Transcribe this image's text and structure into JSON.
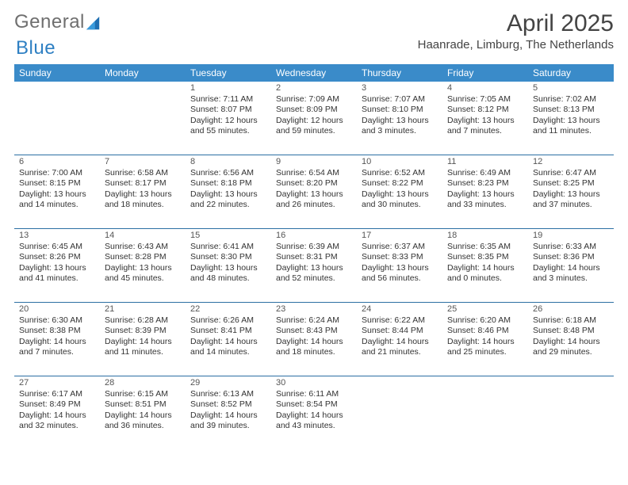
{
  "brand": {
    "word1": "General",
    "word2": "Blue"
  },
  "header": {
    "month_title": "April 2025",
    "location": "Haanrade, Limburg, The Netherlands"
  },
  "calendar": {
    "day_headers": [
      "Sunday",
      "Monday",
      "Tuesday",
      "Wednesday",
      "Thursday",
      "Friday",
      "Saturday"
    ],
    "header_bg": "#3a8bc9",
    "header_fg": "#ffffff",
    "row_border_color": "#2c6fa3",
    "text_color": "#333333",
    "cell_font_size_pt": 8,
    "weeks": [
      [
        null,
        null,
        {
          "n": "1",
          "sunrise": "Sunrise: 7:11 AM",
          "sunset": "Sunset: 8:07 PM",
          "day1": "Daylight: 12 hours",
          "day2": "and 55 minutes."
        },
        {
          "n": "2",
          "sunrise": "Sunrise: 7:09 AM",
          "sunset": "Sunset: 8:09 PM",
          "day1": "Daylight: 12 hours",
          "day2": "and 59 minutes."
        },
        {
          "n": "3",
          "sunrise": "Sunrise: 7:07 AM",
          "sunset": "Sunset: 8:10 PM",
          "day1": "Daylight: 13 hours",
          "day2": "and 3 minutes."
        },
        {
          "n": "4",
          "sunrise": "Sunrise: 7:05 AM",
          "sunset": "Sunset: 8:12 PM",
          "day1": "Daylight: 13 hours",
          "day2": "and 7 minutes."
        },
        {
          "n": "5",
          "sunrise": "Sunrise: 7:02 AM",
          "sunset": "Sunset: 8:13 PM",
          "day1": "Daylight: 13 hours",
          "day2": "and 11 minutes."
        }
      ],
      [
        {
          "n": "6",
          "sunrise": "Sunrise: 7:00 AM",
          "sunset": "Sunset: 8:15 PM",
          "day1": "Daylight: 13 hours",
          "day2": "and 14 minutes."
        },
        {
          "n": "7",
          "sunrise": "Sunrise: 6:58 AM",
          "sunset": "Sunset: 8:17 PM",
          "day1": "Daylight: 13 hours",
          "day2": "and 18 minutes."
        },
        {
          "n": "8",
          "sunrise": "Sunrise: 6:56 AM",
          "sunset": "Sunset: 8:18 PM",
          "day1": "Daylight: 13 hours",
          "day2": "and 22 minutes."
        },
        {
          "n": "9",
          "sunrise": "Sunrise: 6:54 AM",
          "sunset": "Sunset: 8:20 PM",
          "day1": "Daylight: 13 hours",
          "day2": "and 26 minutes."
        },
        {
          "n": "10",
          "sunrise": "Sunrise: 6:52 AM",
          "sunset": "Sunset: 8:22 PM",
          "day1": "Daylight: 13 hours",
          "day2": "and 30 minutes."
        },
        {
          "n": "11",
          "sunrise": "Sunrise: 6:49 AM",
          "sunset": "Sunset: 8:23 PM",
          "day1": "Daylight: 13 hours",
          "day2": "and 33 minutes."
        },
        {
          "n": "12",
          "sunrise": "Sunrise: 6:47 AM",
          "sunset": "Sunset: 8:25 PM",
          "day1": "Daylight: 13 hours",
          "day2": "and 37 minutes."
        }
      ],
      [
        {
          "n": "13",
          "sunrise": "Sunrise: 6:45 AM",
          "sunset": "Sunset: 8:26 PM",
          "day1": "Daylight: 13 hours",
          "day2": "and 41 minutes."
        },
        {
          "n": "14",
          "sunrise": "Sunrise: 6:43 AM",
          "sunset": "Sunset: 8:28 PM",
          "day1": "Daylight: 13 hours",
          "day2": "and 45 minutes."
        },
        {
          "n": "15",
          "sunrise": "Sunrise: 6:41 AM",
          "sunset": "Sunset: 8:30 PM",
          "day1": "Daylight: 13 hours",
          "day2": "and 48 minutes."
        },
        {
          "n": "16",
          "sunrise": "Sunrise: 6:39 AM",
          "sunset": "Sunset: 8:31 PM",
          "day1": "Daylight: 13 hours",
          "day2": "and 52 minutes."
        },
        {
          "n": "17",
          "sunrise": "Sunrise: 6:37 AM",
          "sunset": "Sunset: 8:33 PM",
          "day1": "Daylight: 13 hours",
          "day2": "and 56 minutes."
        },
        {
          "n": "18",
          "sunrise": "Sunrise: 6:35 AM",
          "sunset": "Sunset: 8:35 PM",
          "day1": "Daylight: 14 hours",
          "day2": "and 0 minutes."
        },
        {
          "n": "19",
          "sunrise": "Sunrise: 6:33 AM",
          "sunset": "Sunset: 8:36 PM",
          "day1": "Daylight: 14 hours",
          "day2": "and 3 minutes."
        }
      ],
      [
        {
          "n": "20",
          "sunrise": "Sunrise: 6:30 AM",
          "sunset": "Sunset: 8:38 PM",
          "day1": "Daylight: 14 hours",
          "day2": "and 7 minutes."
        },
        {
          "n": "21",
          "sunrise": "Sunrise: 6:28 AM",
          "sunset": "Sunset: 8:39 PM",
          "day1": "Daylight: 14 hours",
          "day2": "and 11 minutes."
        },
        {
          "n": "22",
          "sunrise": "Sunrise: 6:26 AM",
          "sunset": "Sunset: 8:41 PM",
          "day1": "Daylight: 14 hours",
          "day2": "and 14 minutes."
        },
        {
          "n": "23",
          "sunrise": "Sunrise: 6:24 AM",
          "sunset": "Sunset: 8:43 PM",
          "day1": "Daylight: 14 hours",
          "day2": "and 18 minutes."
        },
        {
          "n": "24",
          "sunrise": "Sunrise: 6:22 AM",
          "sunset": "Sunset: 8:44 PM",
          "day1": "Daylight: 14 hours",
          "day2": "and 21 minutes."
        },
        {
          "n": "25",
          "sunrise": "Sunrise: 6:20 AM",
          "sunset": "Sunset: 8:46 PM",
          "day1": "Daylight: 14 hours",
          "day2": "and 25 minutes."
        },
        {
          "n": "26",
          "sunrise": "Sunrise: 6:18 AM",
          "sunset": "Sunset: 8:48 PM",
          "day1": "Daylight: 14 hours",
          "day2": "and 29 minutes."
        }
      ],
      [
        {
          "n": "27",
          "sunrise": "Sunrise: 6:17 AM",
          "sunset": "Sunset: 8:49 PM",
          "day1": "Daylight: 14 hours",
          "day2": "and 32 minutes."
        },
        {
          "n": "28",
          "sunrise": "Sunrise: 6:15 AM",
          "sunset": "Sunset: 8:51 PM",
          "day1": "Daylight: 14 hours",
          "day2": "and 36 minutes."
        },
        {
          "n": "29",
          "sunrise": "Sunrise: 6:13 AM",
          "sunset": "Sunset: 8:52 PM",
          "day1": "Daylight: 14 hours",
          "day2": "and 39 minutes."
        },
        {
          "n": "30",
          "sunrise": "Sunrise: 6:11 AM",
          "sunset": "Sunset: 8:54 PM",
          "day1": "Daylight: 14 hours",
          "day2": "and 43 minutes."
        },
        null,
        null,
        null
      ]
    ]
  }
}
